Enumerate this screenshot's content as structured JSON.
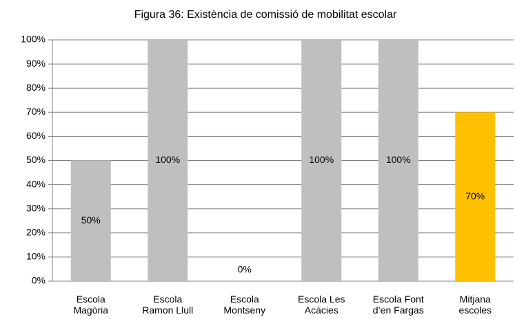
{
  "chart_data": {
    "type": "bar",
    "title": "Figura 36: Existència de comissió de mobilitat escolar",
    "categories": [
      "Escola\nMagòria",
      "Escola\nRamon Llull",
      "Escola\nMontseny",
      "Escola Les\nAcàcies",
      "Escola Font\nd’en Fargas",
      "Mitjana\nescoles"
    ],
    "values": [
      50,
      100,
      0,
      100,
      100,
      70
    ],
    "value_labels": [
      "50%",
      "100%",
      "0%",
      "100%",
      "100%",
      "70%"
    ],
    "colors": [
      "#bfbfbf",
      "#bfbfbf",
      "#bfbfbf",
      "#bfbfbf",
      "#bfbfbf",
      "#ffc000"
    ],
    "ylim": [
      0,
      100
    ],
    "yticks": [
      {
        "value": 0,
        "label": "0%"
      },
      {
        "value": 10,
        "label": "10%"
      },
      {
        "value": 20,
        "label": "20%"
      },
      {
        "value": 30,
        "label": "30%"
      },
      {
        "value": 40,
        "label": "40%"
      },
      {
        "value": 50,
        "label": "50%"
      },
      {
        "value": 60,
        "label": "60%"
      },
      {
        "value": 70,
        "label": "70%"
      },
      {
        "value": 80,
        "label": "80%"
      },
      {
        "value": 90,
        "label": "90%"
      },
      {
        "value": 100,
        "label": "100%"
      }
    ],
    "grid": true
  }
}
